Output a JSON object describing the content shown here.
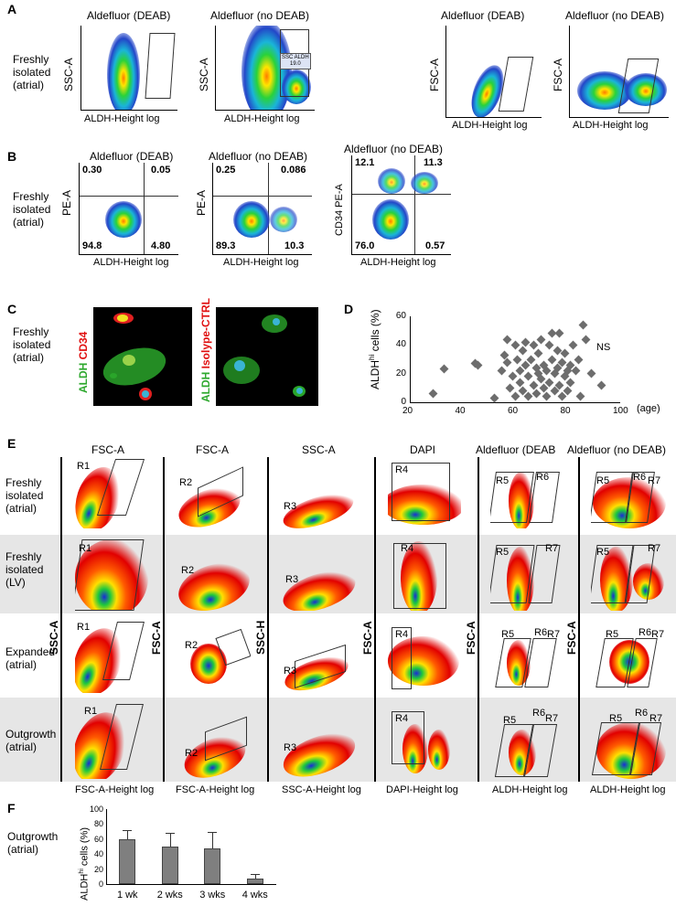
{
  "panel_labels": {
    "a": "A",
    "b": "B",
    "c": "C",
    "d": "D",
    "e": "E",
    "f": "F"
  },
  "panelA": {
    "row_label": [
      "Freshly",
      "isolated",
      "(atrial)"
    ],
    "plots": [
      {
        "title": "Aldefluor (DEAB)",
        "ylabel": "SSC-A",
        "xlabel": "ALDH-Height log"
      },
      {
        "title": "Aldefluor (no DEAB)",
        "ylabel": "SSC-A",
        "xlabel": "ALDH-Height log",
        "gate_text": "SSC ALDH",
        "gate_value": "19.0"
      },
      {
        "title": "Aldefluor (DEAB)",
        "ylabel": "FSC-A",
        "xlabel": "ALDH-Height log"
      },
      {
        "title": "Aldefluor (no DEAB)",
        "ylabel": "FSC-A",
        "xlabel": "ALDH-Height log"
      }
    ]
  },
  "panelB": {
    "row_label": [
      "Freshly",
      "isolated",
      "(atrial)"
    ],
    "plots": [
      {
        "title": "Aldefluor (DEAB)",
        "ylabel": "PE-A",
        "xlabel": "ALDH-Height log",
        "q": [
          "0.30",
          "0.05",
          "94.8",
          "4.80"
        ]
      },
      {
        "title": "Aldefluor (no DEAB)",
        "ylabel": "PE-A",
        "xlabel": "ALDH-Height log",
        "q": [
          "0.25",
          "0.086",
          "89.3",
          "10.3"
        ]
      },
      {
        "title": "Aldefluor (no DEAB)",
        "ylabel": "CD34 PE-A",
        "xlabel": "ALDH-Height log",
        "q": [
          "12.1",
          "11.3",
          "76.0",
          "0.57"
        ]
      }
    ]
  },
  "panelC": {
    "row_label": [
      "Freshly",
      "isolated",
      "(atrial)"
    ],
    "img1": {
      "aldh": "ALDH",
      "marker": "CD34"
    },
    "img2": {
      "aldh": "ALDH",
      "marker": "Isolype-CTRL"
    }
  },
  "panelD": {
    "ylabel_prefix": "ALDH",
    "ylabel_sup": "hi",
    "ylabel_suffix": " cells (%)",
    "annotation": "NS",
    "xlabel": "(age)",
    "chart_data": {
      "type": "scatter",
      "xlim": [
        20,
        100
      ],
      "ylim": [
        0,
        60
      ],
      "xticks": [
        "20",
        "40",
        "60",
        "80",
        "100"
      ],
      "yticks": [
        "0",
        "20",
        "40",
        "60"
      ],
      "points": [
        [
          29,
          6
        ],
        [
          33,
          23
        ],
        [
          45,
          27
        ],
        [
          46,
          26
        ],
        [
          52,
          3
        ],
        [
          55,
          22
        ],
        [
          56,
          33
        ],
        [
          57,
          44
        ],
        [
          57,
          28
        ],
        [
          58,
          10
        ],
        [
          59,
          18
        ],
        [
          60,
          4
        ],
        [
          60,
          40
        ],
        [
          61,
          30
        ],
        [
          62,
          22
        ],
        [
          62,
          14
        ],
        [
          63,
          36
        ],
        [
          63,
          8
        ],
        [
          64,
          26
        ],
        [
          64,
          42
        ],
        [
          65,
          18
        ],
        [
          65,
          4
        ],
        [
          66,
          30
        ],
        [
          67,
          12
        ],
        [
          67,
          40
        ],
        [
          68,
          24
        ],
        [
          68,
          6
        ],
        [
          69,
          20
        ],
        [
          69,
          34
        ],
        [
          70,
          44
        ],
        [
          70,
          16
        ],
        [
          71,
          10
        ],
        [
          71,
          26
        ],
        [
          72,
          22
        ],
        [
          72,
          4
        ],
        [
          73,
          40
        ],
        [
          73,
          14
        ],
        [
          74,
          30
        ],
        [
          74,
          48
        ],
        [
          75,
          20
        ],
        [
          75,
          8
        ],
        [
          76,
          36
        ],
        [
          76,
          24
        ],
        [
          77,
          48
        ],
        [
          77,
          12
        ],
        [
          78,
          28
        ],
        [
          78,
          4
        ],
        [
          79,
          18
        ],
        [
          79,
          34
        ],
        [
          80,
          22
        ],
        [
          80,
          8
        ],
        [
          81,
          26
        ],
        [
          81,
          14
        ],
        [
          82,
          40
        ],
        [
          83,
          22
        ],
        [
          84,
          30
        ],
        [
          85,
          4
        ],
        [
          86,
          54
        ],
        [
          87,
          44
        ],
        [
          89,
          20
        ],
        [
          93,
          12
        ]
      ]
    }
  },
  "panelE": {
    "col_titles": [
      "FSC-A",
      "FSC-A",
      "SSC-A",
      "DAPI",
      "Aldefluor (DEAB",
      "Aldefluor (no DEAB)"
    ],
    "row_labels": [
      [
        "Freshly",
        "isolated",
        "(atrial)"
      ],
      [
        "Freshly",
        "isolated",
        "(LV)"
      ],
      [
        "Expanded",
        "(atrial)"
      ],
      [
        "Outgrowth",
        "(atrial)"
      ]
    ],
    "ylabels": [
      "SSC-A",
      "FSC-A",
      "SSC-H",
      "FSC-A",
      "FSC-A",
      "FSC-A"
    ],
    "xlabels": [
      "FSC-A-Height log",
      "FSC-A-Height log",
      "SSC-A-Height log",
      "DAPI-Height log",
      "ALDH-Height log",
      "ALDH-Height log"
    ],
    "regions": {
      "r1": "R1",
      "r2": "R2",
      "r3": "R3",
      "r4": "R4",
      "r5": "R5",
      "r6": "R6",
      "r7": "R7"
    }
  },
  "panelF": {
    "row_label": [
      "Outgrowth",
      "(atrial)"
    ],
    "ylabel_prefix": "ALDH",
    "ylabel_sup": "hi",
    "ylabel_suffix": " cells (%)",
    "chart_data": {
      "type": "bar",
      "categories": [
        "1 wk",
        "2 wks",
        "3 wks",
        "4 wks"
      ],
      "values": [
        60,
        50,
        47,
        7
      ],
      "errors": [
        12,
        18,
        23,
        7
      ],
      "ylim": [
        0,
        100
      ],
      "yticks": [
        "0",
        "20",
        "40",
        "60",
        "80",
        "100"
      ],
      "ylabel": "ALDHhi cells (%)"
    }
  }
}
